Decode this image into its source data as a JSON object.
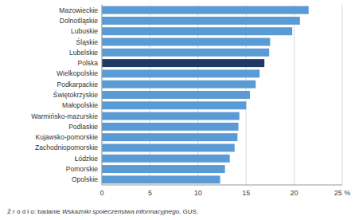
{
  "chart_data": {
    "type": "bar",
    "orientation": "horizontal",
    "categories": [
      "Opolskie",
      "Pomorskie",
      "Łódzkie",
      "Zachodniopomorskie",
      "Kujawsko-pomorskie",
      "Podlaskie",
      "Warmińsko-mazurskie",
      "Małopolskie",
      "Świętokrzyskie",
      "Podkarpackie",
      "Wielkopolskie",
      "Polska",
      "Lubelskie",
      "Śląskie",
      "Lubuskie",
      "Dolnośląskie",
      "Mazowieckie"
    ],
    "values": [
      12.3,
      12.8,
      13.3,
      13.8,
      14.1,
      14.2,
      14.3,
      15.0,
      15.4,
      16.0,
      16.4,
      16.9,
      17.4,
      17.5,
      19.8,
      20.6,
      21.5
    ],
    "colors": [
      "#5b9bd5",
      "#5b9bd5",
      "#5b9bd5",
      "#5b9bd5",
      "#5b9bd5",
      "#5b9bd5",
      "#5b9bd5",
      "#5b9bd5",
      "#5b9bd5",
      "#5b9bd5",
      "#5b9bd5",
      "#1f3864",
      "#5b9bd5",
      "#5b9bd5",
      "#5b9bd5",
      "#5b9bd5",
      "#5b9bd5"
    ],
    "xlim": [
      0,
      25
    ],
    "xticks": [
      0,
      5,
      10,
      15,
      20,
      {
        "value": 25,
        "label": "25 %"
      }
    ],
    "grid": true,
    "annotations": [
      "Ź r ó d ł o: badanie ",
      "Wskaźniki społeczeństwa informacyjnego",
      ", GUS."
    ]
  }
}
